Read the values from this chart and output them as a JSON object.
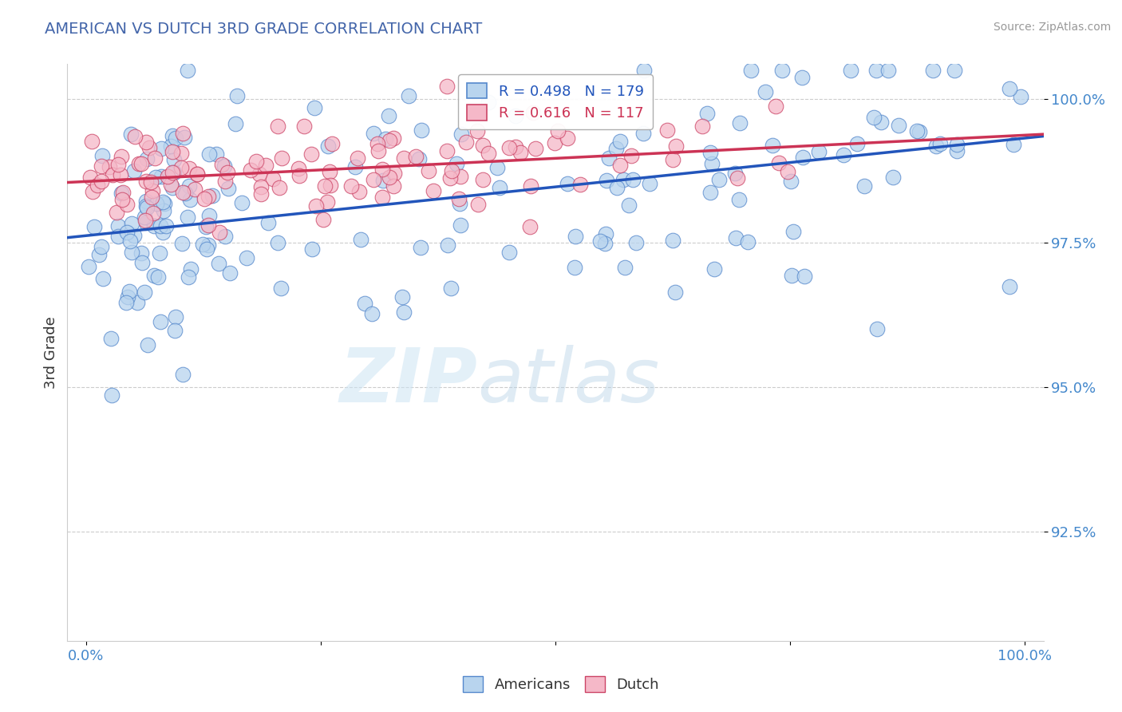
{
  "title": "AMERICAN VS DUTCH 3RD GRADE CORRELATION CHART",
  "source": "Source: ZipAtlas.com",
  "ylabel": "3rd Grade",
  "legend_american": "Americans",
  "legend_dutch": "Dutch",
  "R_american": 0.498,
  "N_american": 179,
  "R_dutch": 0.616,
  "N_dutch": 117,
  "color_american": "#b8d4ee",
  "color_dutch": "#f5b8c8",
  "edge_color_american": "#5588cc",
  "edge_color_dutch": "#cc4466",
  "line_color_american": "#2255bb",
  "line_color_dutch": "#cc3355",
  "ytick_labels": [
    "92.5%",
    "95.0%",
    "97.5%",
    "100.0%"
  ],
  "ytick_values": [
    0.925,
    0.95,
    0.975,
    1.0
  ],
  "ymin": 0.906,
  "ymax": 1.006,
  "xmin": -0.02,
  "xmax": 1.02,
  "watermark_zip": "ZIP",
  "watermark_atlas": "atlas",
  "title_color": "#4466aa",
  "ylabel_color": "#333333",
  "tick_color": "#4488cc",
  "grid_color": "#cccccc",
  "background_color": "#ffffff",
  "source_color": "#999999"
}
